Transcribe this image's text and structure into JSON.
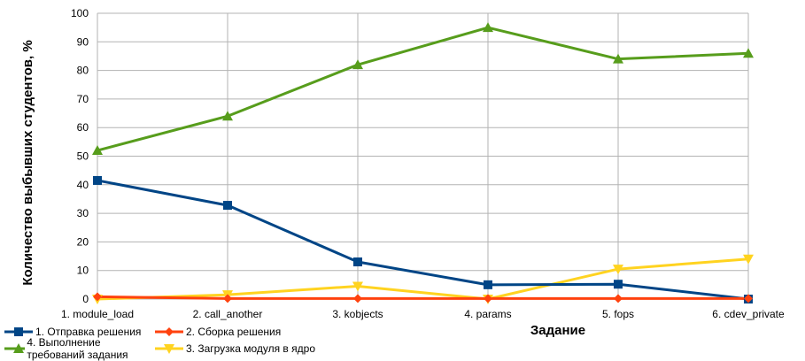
{
  "chart_data": {
    "type": "line",
    "xlabel": "Задание",
    "ylabel": "Количество выбывших студентов, %",
    "ylim": [
      0,
      100
    ],
    "yticks": [
      "0",
      "10",
      "20",
      "30",
      "40",
      "50",
      "60",
      "70",
      "80",
      "90",
      "100"
    ],
    "categories": [
      "1. module_load",
      "2. call_another",
      "3. kobjects",
      "4. params",
      "5. fops",
      "6. cdev_private"
    ],
    "grid": true,
    "legend_position": "bottom-left",
    "series": [
      {
        "name": "1. Отправка решения",
        "color": "#004586",
        "marker": "square",
        "values": [
          41.5,
          32.8,
          13.0,
          5.0,
          5.2,
          0.0
        ]
      },
      {
        "name": "2. Сборка решения",
        "color": "#ff420e",
        "marker": "diamond",
        "values": [
          0.8,
          0.2,
          0.2,
          0.2,
          0.2,
          0.2
        ]
      },
      {
        "name": "4. Выполнение требований задания",
        "color": "#579d1c",
        "marker": "triangle",
        "values": [
          52,
          64,
          82,
          95,
          84,
          86
        ]
      },
      {
        "name": "3. Загрузка модуля в ядро",
        "color": "#ffd320",
        "marker": "triangle-down",
        "values": [
          0.0,
          1.5,
          4.5,
          0.0,
          10.5,
          14.0
        ]
      }
    ]
  }
}
